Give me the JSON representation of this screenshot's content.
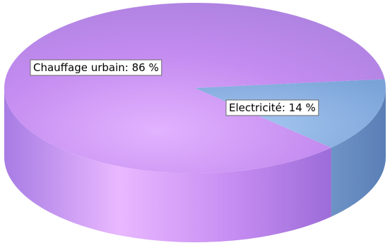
{
  "chart_data": {
    "type": "pie",
    "style": "3d",
    "slices": [
      {
        "label": "Chauffage urbain",
        "value": 86,
        "display": "Chauffage urbain: 86 %"
      },
      {
        "label": "Electricité",
        "value": 14,
        "display": "Electricité: 14 %"
      }
    ],
    "colors": {
      "Chauffage urbain": "#c48cf0",
      "Electricité": "#7fa8dc",
      "background": "#ffffff"
    },
    "legend": "none",
    "labels": "inside-boxes"
  }
}
